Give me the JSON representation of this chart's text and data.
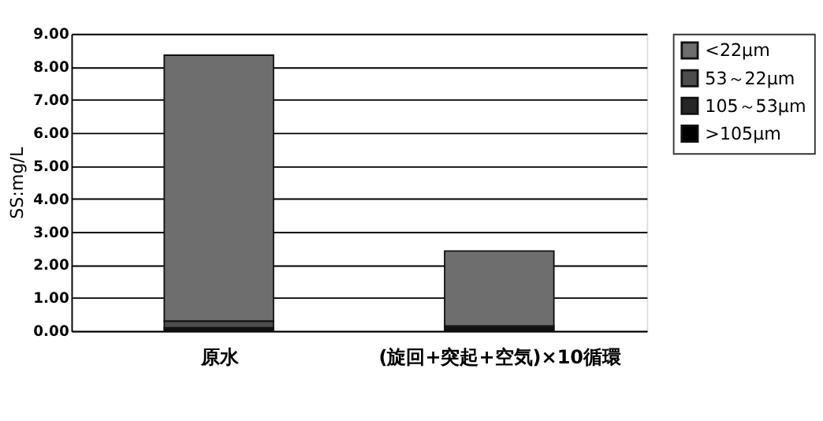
{
  "chart_data": {
    "type": "bar",
    "stacked": true,
    "ylabel": "SS:mg/L",
    "categories": [
      "原水",
      "(旋回+突起+空気)×10循環"
    ],
    "series": [
      {
        "name": ">105μm",
        "color": "#000000",
        "values": [
          0.05,
          0.05
        ]
      },
      {
        "name": "105～53μm",
        "color": "#262626",
        "values": [
          0.05,
          0.05
        ]
      },
      {
        "name": "53～22μm",
        "color": "#4d4d4d",
        "values": [
          0.2,
          0.05
        ]
      },
      {
        "name": "<22μm",
        "color": "#6e6e6e",
        "values": [
          8.05,
          2.27
        ]
      }
    ],
    "ylim": [
      0,
      9
    ],
    "yticks": [
      {
        "value": 0,
        "label": "0.00"
      },
      {
        "value": 1,
        "label": "1.00"
      },
      {
        "value": 2,
        "label": "2.00"
      },
      {
        "value": 3,
        "label": "3.00"
      },
      {
        "value": 4,
        "label": "4.00"
      },
      {
        "value": 5,
        "label": "5.00"
      },
      {
        "value": 6,
        "label": "6.00"
      },
      {
        "value": 7,
        "label": "7.00"
      },
      {
        "value": 8,
        "label": "8.00"
      },
      {
        "value": 9,
        "label": "9.00"
      }
    ],
    "grid": "y",
    "legend": "right"
  }
}
